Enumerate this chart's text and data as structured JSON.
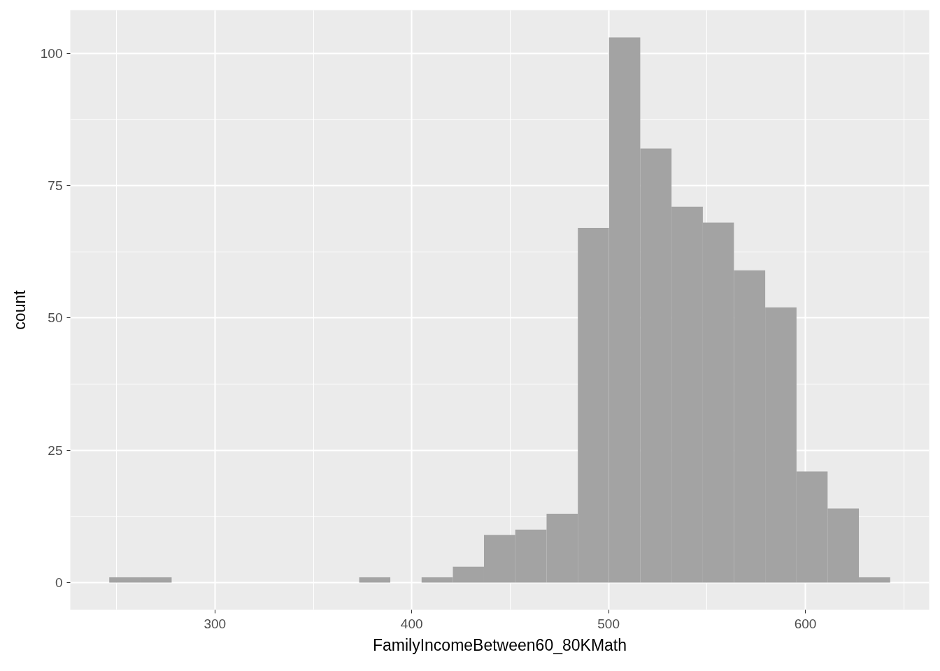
{
  "chart_data": {
    "type": "histogram",
    "xlabel": "FamilyIncomeBetween60_80KMath",
    "ylabel": "count",
    "bins": [
      246.3,
      262.2,
      278.0,
      293.9,
      309.8,
      325.7,
      341.5,
      357.4,
      373.3,
      389.1,
      405.0,
      420.9,
      436.7,
      452.6,
      468.5,
      484.4,
      500.2,
      516.1,
      532.0,
      547.9,
      563.7,
      579.6,
      595.5,
      611.3,
      627.2,
      643.1
    ],
    "values": [
      1,
      1,
      0,
      0,
      0,
      0,
      0,
      0,
      1,
      0,
      1,
      3,
      9,
      10,
      13,
      67,
      103,
      82,
      71,
      68,
      59,
      52,
      21,
      14,
      1
    ],
    "color": "#a3a3a3",
    "xlim": [
      226.5,
      662.9
    ],
    "ylim": [
      -5.15,
      108.15
    ],
    "xticks": [
      300,
      400,
      500,
      600
    ],
    "yticks": [
      0,
      25,
      50,
      75,
      100
    ],
    "grid": true
  }
}
